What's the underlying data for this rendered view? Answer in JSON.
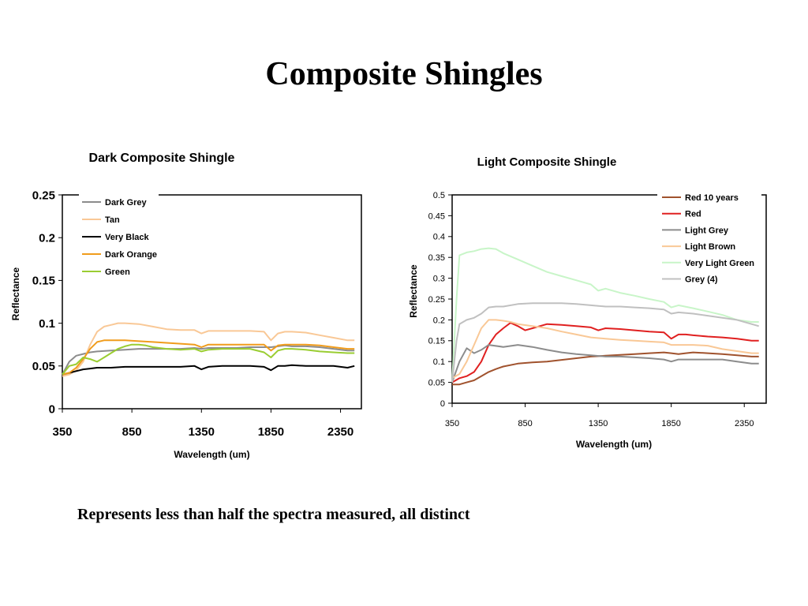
{
  "slide": {
    "title": "Composite Shingles",
    "caption": "Represents less than half the spectra measured, all distinct"
  },
  "chart_data": [
    {
      "type": "line",
      "title": "Dark Composite Shingle",
      "xlabel": "Wavelength (um)",
      "ylabel": "Reflectance",
      "xlim": [
        350,
        2500
      ],
      "ylim": [
        0,
        0.25
      ],
      "xticks": [
        "350",
        "850",
        "1350",
        "1850",
        "2350"
      ],
      "yticks": [
        "0",
        "0.05",
        "0.1",
        "0.15",
        "0.2",
        "0.25"
      ],
      "grid": false,
      "legend_position": "top-left",
      "series": [
        {
          "name": "Dark Grey",
          "color": "#8c8c8c",
          "x": [
            350,
            400,
            450,
            500,
            550,
            600,
            700,
            800,
            900,
            1000,
            1100,
            1200,
            1300,
            1350,
            1400,
            1500,
            1600,
            1700,
            1800,
            1850,
            1900,
            1950,
            2000,
            2100,
            2200,
            2300,
            2400,
            2450
          ],
          "y": [
            0.04,
            0.055,
            0.062,
            0.064,
            0.066,
            0.067,
            0.068,
            0.069,
            0.07,
            0.07,
            0.07,
            0.07,
            0.071,
            0.07,
            0.071,
            0.071,
            0.071,
            0.072,
            0.072,
            0.072,
            0.073,
            0.074,
            0.073,
            0.073,
            0.072,
            0.07,
            0.068,
            0.068
          ]
        },
        {
          "name": "Tan",
          "color": "#f9c896",
          "x": [
            350,
            400,
            450,
            500,
            550,
            600,
            650,
            700,
            750,
            800,
            900,
            1000,
            1100,
            1200,
            1300,
            1350,
            1400,
            1500,
            1600,
            1700,
            1800,
            1850,
            1900,
            1950,
            2000,
            2100,
            2200,
            2300,
            2400,
            2450
          ],
          "y": [
            0.038,
            0.04,
            0.045,
            0.055,
            0.075,
            0.09,
            0.096,
            0.098,
            0.1,
            0.1,
            0.099,
            0.096,
            0.093,
            0.092,
            0.092,
            0.088,
            0.091,
            0.091,
            0.091,
            0.091,
            0.09,
            0.08,
            0.088,
            0.09,
            0.09,
            0.089,
            0.086,
            0.083,
            0.08,
            0.08
          ]
        },
        {
          "name": "Very Black",
          "color": "#000000",
          "x": [
            350,
            400,
            450,
            500,
            550,
            600,
            700,
            800,
            900,
            1000,
            1100,
            1200,
            1300,
            1350,
            1400,
            1500,
            1600,
            1700,
            1800,
            1850,
            1900,
            1950,
            2000,
            2100,
            2200,
            2300,
            2400,
            2450
          ],
          "y": [
            0.04,
            0.042,
            0.044,
            0.046,
            0.047,
            0.048,
            0.048,
            0.049,
            0.049,
            0.049,
            0.049,
            0.049,
            0.05,
            0.046,
            0.049,
            0.05,
            0.05,
            0.05,
            0.049,
            0.045,
            0.05,
            0.05,
            0.051,
            0.05,
            0.05,
            0.05,
            0.048,
            0.05
          ]
        },
        {
          "name": "Dark Orange",
          "color": "#f09c1c",
          "x": [
            350,
            400,
            450,
            500,
            550,
            600,
            650,
            700,
            800,
            900,
            1000,
            1100,
            1200,
            1300,
            1350,
            1400,
            1500,
            1600,
            1700,
            1800,
            1850,
            1900,
            1950,
            2000,
            2100,
            2200,
            2300,
            2400,
            2450
          ],
          "y": [
            0.04,
            0.042,
            0.048,
            0.058,
            0.07,
            0.078,
            0.08,
            0.08,
            0.08,
            0.079,
            0.078,
            0.077,
            0.076,
            0.075,
            0.072,
            0.075,
            0.075,
            0.075,
            0.075,
            0.075,
            0.068,
            0.074,
            0.075,
            0.075,
            0.075,
            0.074,
            0.072,
            0.07,
            0.07
          ]
        },
        {
          "name": "Green",
          "color": "#9acd32",
          "x": [
            350,
            400,
            450,
            500,
            550,
            600,
            650,
            700,
            750,
            800,
            850,
            900,
            950,
            1000,
            1100,
            1200,
            1300,
            1350,
            1400,
            1500,
            1600,
            1700,
            1800,
            1850,
            1900,
            1950,
            2000,
            2100,
            2200,
            2300,
            2400,
            2450
          ],
          "y": [
            0.04,
            0.05,
            0.052,
            0.06,
            0.058,
            0.055,
            0.06,
            0.065,
            0.07,
            0.073,
            0.075,
            0.075,
            0.074,
            0.072,
            0.07,
            0.069,
            0.07,
            0.067,
            0.069,
            0.07,
            0.07,
            0.07,
            0.066,
            0.06,
            0.068,
            0.07,
            0.07,
            0.069,
            0.067,
            0.066,
            0.065,
            0.065
          ]
        }
      ]
    },
    {
      "type": "line",
      "title": "Light Composite Shingle",
      "xlabel": "Wavelength (um)",
      "ylabel": "Reflectance",
      "xlim": [
        350,
        2500
      ],
      "ylim": [
        0,
        0.5
      ],
      "xticks": [
        "350",
        "850",
        "1350",
        "1850",
        "2350"
      ],
      "yticks": [
        "0",
        "0.05",
        "0.1",
        "0.15",
        "0.2",
        "0.25",
        "0.3",
        "0.35",
        "0.4",
        "0.45",
        "0.5"
      ],
      "grid": false,
      "legend_position": "top-right",
      "series": [
        {
          "name": "Red 10 years",
          "color": "#a0522d",
          "x": [
            350,
            400,
            450,
            500,
            550,
            600,
            650,
            700,
            800,
            900,
            1000,
            1100,
            1200,
            1300,
            1400,
            1500,
            1600,
            1700,
            1800,
            1850,
            1900,
            1950,
            2000,
            2100,
            2200,
            2300,
            2400,
            2450
          ],
          "y": [
            0.045,
            0.045,
            0.05,
            0.055,
            0.065,
            0.075,
            0.082,
            0.088,
            0.095,
            0.098,
            0.1,
            0.104,
            0.108,
            0.112,
            0.114,
            0.116,
            0.118,
            0.12,
            0.122,
            0.12,
            0.118,
            0.12,
            0.122,
            0.12,
            0.118,
            0.115,
            0.112,
            0.112
          ]
        },
        {
          "name": "Red",
          "color": "#e02020",
          "x": [
            350,
            400,
            450,
            500,
            550,
            600,
            650,
            700,
            750,
            800,
            850,
            900,
            1000,
            1100,
            1200,
            1300,
            1350,
            1400,
            1500,
            1600,
            1700,
            1800,
            1850,
            1900,
            1950,
            2000,
            2100,
            2200,
            2300,
            2400,
            2450
          ],
          "y": [
            0.05,
            0.06,
            0.065,
            0.075,
            0.1,
            0.14,
            0.165,
            0.18,
            0.193,
            0.185,
            0.175,
            0.18,
            0.19,
            0.188,
            0.185,
            0.182,
            0.175,
            0.18,
            0.178,
            0.175,
            0.172,
            0.17,
            0.155,
            0.165,
            0.165,
            0.163,
            0.16,
            0.158,
            0.155,
            0.15,
            0.15
          ]
        },
        {
          "name": "Light Grey",
          "color": "#8c8c8c",
          "x": [
            350,
            400,
            450,
            500,
            550,
            600,
            700,
            800,
            900,
            1000,
            1100,
            1200,
            1300,
            1400,
            1500,
            1600,
            1700,
            1800,
            1850,
            1900,
            2000,
            2100,
            2200,
            2300,
            2400,
            2450
          ],
          "y": [
            0.05,
            0.1,
            0.132,
            0.12,
            0.128,
            0.14,
            0.135,
            0.14,
            0.135,
            0.128,
            0.122,
            0.118,
            0.115,
            0.112,
            0.112,
            0.11,
            0.108,
            0.105,
            0.1,
            0.105,
            0.105,
            0.105,
            0.105,
            0.1,
            0.095,
            0.095
          ]
        },
        {
          "name": "Light Brown",
          "color": "#f9c896",
          "x": [
            350,
            400,
            450,
            500,
            550,
            600,
            650,
            700,
            750,
            800,
            900,
            1000,
            1100,
            1200,
            1300,
            1400,
            1500,
            1600,
            1700,
            1800,
            1850,
            1900,
            2000,
            2100,
            2200,
            2300,
            2400,
            2450
          ],
          "y": [
            0.06,
            0.07,
            0.1,
            0.14,
            0.18,
            0.2,
            0.2,
            0.198,
            0.195,
            0.19,
            0.185,
            0.18,
            0.172,
            0.165,
            0.158,
            0.155,
            0.152,
            0.15,
            0.148,
            0.146,
            0.14,
            0.14,
            0.14,
            0.138,
            0.13,
            0.125,
            0.12,
            0.12
          ]
        },
        {
          "name": "Very Light Green",
          "color": "#c8f5c8",
          "x": [
            350,
            380,
            400,
            450,
            500,
            550,
            600,
            650,
            700,
            800,
            900,
            1000,
            1100,
            1200,
            1300,
            1350,
            1400,
            1500,
            1600,
            1700,
            1800,
            1850,
            1900,
            2000,
            2100,
            2200,
            2300,
            2400,
            2450
          ],
          "y": [
            0.05,
            0.25,
            0.355,
            0.362,
            0.365,
            0.37,
            0.372,
            0.37,
            0.36,
            0.345,
            0.33,
            0.315,
            0.305,
            0.295,
            0.285,
            0.27,
            0.275,
            0.265,
            0.258,
            0.25,
            0.243,
            0.23,
            0.235,
            0.228,
            0.22,
            0.212,
            0.2,
            0.195,
            0.195
          ]
        },
        {
          "name": "Grey (4)",
          "color": "#c0c0c0",
          "x": [
            350,
            380,
            400,
            450,
            500,
            550,
            600,
            650,
            700,
            800,
            900,
            1000,
            1100,
            1200,
            1300,
            1400,
            1500,
            1600,
            1700,
            1800,
            1850,
            1900,
            2000,
            2100,
            2200,
            2300,
            2400,
            2450
          ],
          "y": [
            0.05,
            0.15,
            0.19,
            0.2,
            0.205,
            0.215,
            0.23,
            0.232,
            0.232,
            0.238,
            0.24,
            0.24,
            0.24,
            0.238,
            0.235,
            0.232,
            0.232,
            0.23,
            0.228,
            0.225,
            0.215,
            0.218,
            0.215,
            0.21,
            0.205,
            0.2,
            0.19,
            0.185
          ]
        }
      ]
    }
  ]
}
